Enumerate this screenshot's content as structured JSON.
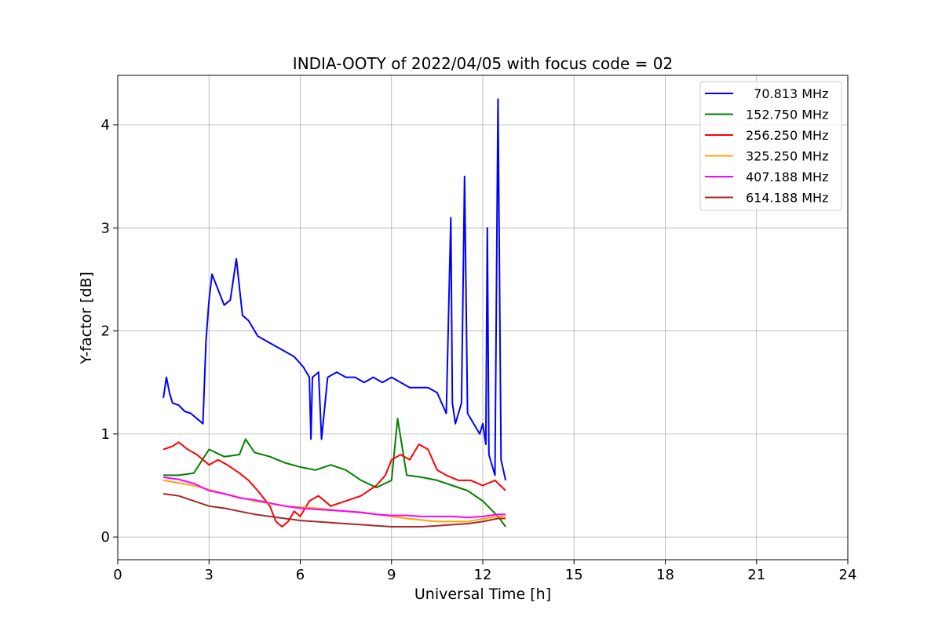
{
  "chart_data": {
    "type": "line",
    "title": "INDIA-OOTY of 2022/04/05 with focus code = 02",
    "xlabel": "Universal Time [h]",
    "ylabel": "Y-factor [dB]",
    "xlim": [
      0,
      24
    ],
    "ylim": [
      -0.22,
      4.48
    ],
    "xticks": [
      0,
      3,
      6,
      9,
      12,
      15,
      18,
      21,
      24
    ],
    "yticks": [
      0,
      1,
      2,
      3,
      4
    ],
    "grid": true,
    "legend_position": "top-right",
    "series": [
      {
        "name": "  70.813 MHz",
        "color": "#0000ff",
        "x": [
          1.5,
          1.6,
          1.7,
          1.8,
          2.0,
          2.2,
          2.4,
          2.6,
          2.8,
          2.9,
          3.0,
          3.1,
          3.3,
          3.5,
          3.7,
          3.9,
          4.1,
          4.3,
          4.6,
          4.9,
          5.2,
          5.5,
          5.8,
          6.1,
          6.3,
          6.35,
          6.4,
          6.6,
          6.7,
          6.9,
          7.2,
          7.5,
          7.8,
          8.1,
          8.4,
          8.7,
          9.0,
          9.3,
          9.6,
          9.9,
          10.2,
          10.5,
          10.8,
          10.95,
          11.0,
          11.1,
          11.3,
          11.4,
          11.5,
          11.7,
          11.9,
          12.0,
          12.1,
          12.15,
          12.2,
          12.4,
          12.5,
          12.6,
          12.75
        ],
        "y": [
          1.35,
          1.55,
          1.4,
          1.3,
          1.28,
          1.22,
          1.2,
          1.15,
          1.1,
          1.9,
          2.3,
          2.55,
          2.4,
          2.25,
          2.3,
          2.7,
          2.15,
          2.1,
          1.95,
          1.9,
          1.85,
          1.8,
          1.75,
          1.65,
          1.55,
          0.95,
          1.55,
          1.6,
          0.95,
          1.55,
          1.6,
          1.55,
          1.55,
          1.5,
          1.55,
          1.5,
          1.55,
          1.5,
          1.45,
          1.45,
          1.45,
          1.4,
          1.2,
          3.1,
          1.3,
          1.1,
          1.3,
          3.5,
          1.2,
          1.1,
          1.0,
          1.1,
          0.9,
          3.0,
          0.8,
          0.6,
          4.25,
          0.75,
          0.55
        ]
      },
      {
        "name": "152.750 MHz",
        "color": "#008000",
        "x": [
          1.5,
          2.0,
          2.5,
          3.0,
          3.5,
          4.0,
          4.2,
          4.5,
          5.0,
          5.5,
          6.0,
          6.5,
          7.0,
          7.5,
          8.0,
          8.5,
          9.0,
          9.2,
          9.5,
          10.0,
          10.5,
          11.0,
          11.5,
          12.0,
          12.5,
          12.75
        ],
        "y": [
          0.6,
          0.6,
          0.62,
          0.85,
          0.78,
          0.8,
          0.95,
          0.82,
          0.78,
          0.72,
          0.68,
          0.65,
          0.7,
          0.65,
          0.55,
          0.48,
          0.55,
          1.15,
          0.6,
          0.58,
          0.55,
          0.5,
          0.45,
          0.35,
          0.2,
          0.1
        ]
      },
      {
        "name": "256.250 MHz",
        "color": "#ff0000",
        "x": [
          1.5,
          1.8,
          2.0,
          2.3,
          2.6,
          3.0,
          3.3,
          3.6,
          4.0,
          4.3,
          4.6,
          5.0,
          5.2,
          5.4,
          5.6,
          5.8,
          6.0,
          6.3,
          6.6,
          7.0,
          7.5,
          8.0,
          8.5,
          8.8,
          9.0,
          9.3,
          9.6,
          9.9,
          10.2,
          10.5,
          10.8,
          11.2,
          11.6,
          12.0,
          12.4,
          12.75
        ],
        "y": [
          0.85,
          0.88,
          0.92,
          0.85,
          0.8,
          0.7,
          0.75,
          0.7,
          0.62,
          0.55,
          0.45,
          0.3,
          0.15,
          0.1,
          0.15,
          0.25,
          0.2,
          0.35,
          0.4,
          0.3,
          0.35,
          0.4,
          0.5,
          0.6,
          0.75,
          0.8,
          0.75,
          0.9,
          0.85,
          0.65,
          0.6,
          0.55,
          0.55,
          0.5,
          0.55,
          0.45
        ]
      },
      {
        "name": "325.250 MHz",
        "color": "#ffa500",
        "x": [
          1.5,
          2.5,
          3.5,
          4.5,
          5.5,
          6.5,
          7.5,
          8.5,
          9.5,
          10.5,
          11.5,
          12.5,
          12.75
        ],
        "y": [
          0.55,
          0.5,
          0.42,
          0.35,
          0.3,
          0.28,
          0.25,
          0.22,
          0.18,
          0.15,
          0.15,
          0.2,
          0.2
        ]
      },
      {
        "name": "407.188 MHz",
        "color": "#ff00ff",
        "x": [
          1.5,
          2.0,
          2.5,
          3.0,
          3.5,
          4.0,
          4.5,
          5.0,
          5.5,
          6.0,
          6.5,
          7.0,
          7.5,
          8.0,
          8.5,
          9.0,
          9.5,
          10.0,
          10.5,
          11.0,
          11.5,
          12.0,
          12.5,
          12.75
        ],
        "y": [
          0.58,
          0.56,
          0.52,
          0.45,
          0.42,
          0.38,
          0.36,
          0.33,
          0.3,
          0.28,
          0.27,
          0.26,
          0.25,
          0.24,
          0.22,
          0.21,
          0.21,
          0.2,
          0.2,
          0.2,
          0.19,
          0.2,
          0.22,
          0.22
        ]
      },
      {
        "name": "614.188 MHz",
        "color": "#a52a2a",
        "x": [
          1.5,
          2.0,
          2.5,
          3.0,
          3.5,
          4.0,
          4.5,
          5.0,
          5.5,
          6.0,
          6.5,
          7.0,
          7.5,
          8.0,
          8.5,
          9.0,
          9.5,
          10.0,
          10.5,
          11.0,
          11.5,
          12.0,
          12.5,
          12.75
        ],
        "y": [
          0.42,
          0.4,
          0.35,
          0.3,
          0.28,
          0.25,
          0.22,
          0.2,
          0.18,
          0.16,
          0.15,
          0.14,
          0.13,
          0.12,
          0.11,
          0.1,
          0.1,
          0.1,
          0.11,
          0.12,
          0.13,
          0.15,
          0.18,
          0.18
        ]
      }
    ]
  }
}
